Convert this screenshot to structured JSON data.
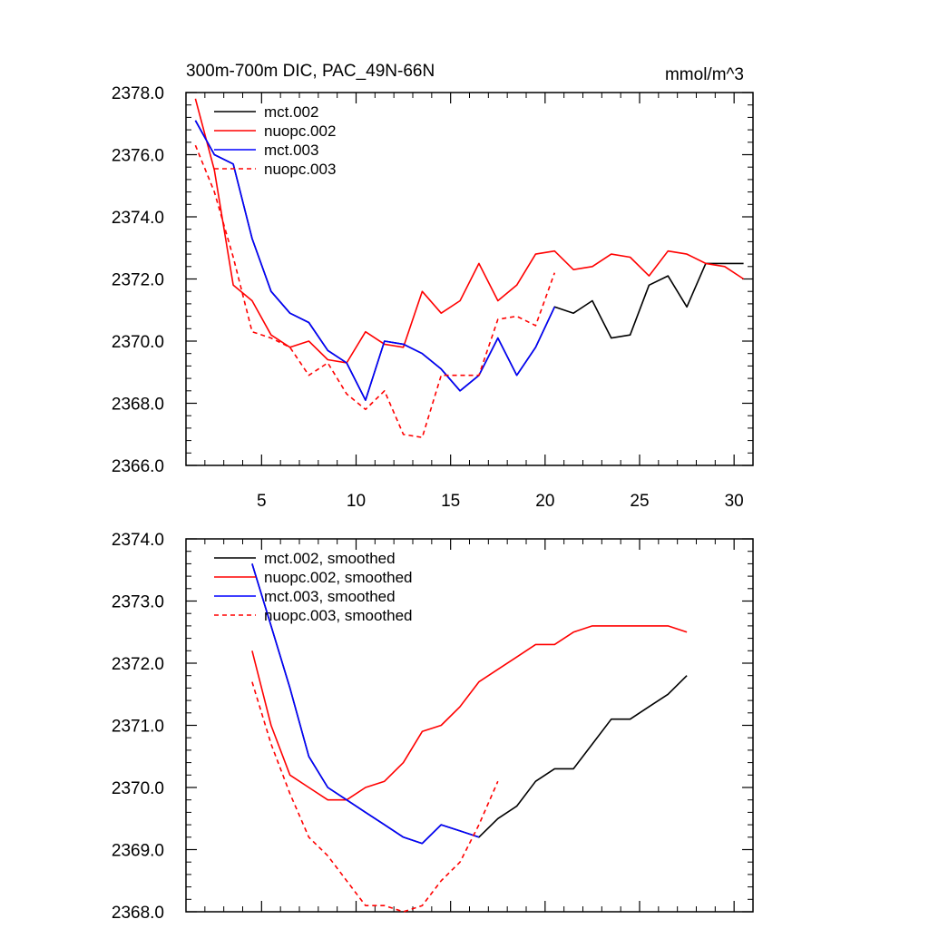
{
  "chart_data": [
    {
      "type": "line",
      "title": "300m-700m DIC, PAC_49N-66N",
      "units": "mmol/m^3",
      "ylim": [
        2366.0,
        2378.0
      ],
      "xlim": [
        1,
        31
      ],
      "yticks": [
        2366.0,
        2368.0,
        2370.0,
        2372.0,
        2374.0,
        2376.0,
        2378.0
      ],
      "ytick_labels": [
        "2366.0",
        "2368.0",
        "2370.0",
        "2372.0",
        "2374.0",
        "2376.0",
        "2378.0"
      ],
      "xticks": [
        5,
        10,
        15,
        20,
        25,
        30
      ],
      "xtick_labels": [
        "5",
        "10",
        "15",
        "20",
        "25",
        "30"
      ],
      "legend_position": "top-left",
      "series": [
        {
          "name": "mct.002",
          "color": "#000000",
          "dash": "solid",
          "x": [
            1.5,
            2.5,
            3.5,
            4.5,
            5.5,
            6.5,
            7.5,
            8.5,
            9.5,
            10.5,
            11.5,
            12.5,
            13.5,
            14.5,
            15.5,
            16.5,
            17.5,
            18.5,
            19.5,
            20.5,
            21.5,
            22.5,
            23.5,
            24.5,
            25.5,
            26.5,
            27.5,
            28.5,
            29.5,
            30.5
          ],
          "values": [
            2377.1,
            2376.0,
            2375.7,
            2373.3,
            2371.6,
            2370.9,
            2370.6,
            2369.7,
            2369.3,
            2368.1,
            2370.0,
            2369.9,
            2369.6,
            2369.1,
            2368.4,
            2368.9,
            2370.1,
            2368.9,
            2369.8,
            2371.1,
            2370.9,
            2371.3,
            2370.1,
            2370.2,
            2371.8,
            2372.1,
            2371.1,
            2372.5,
            2372.5,
            2372.5
          ]
        },
        {
          "name": "nuopc.002",
          "color": "#ff0000",
          "dash": "solid",
          "x": [
            1.5,
            2.5,
            3.5,
            4.5,
            5.5,
            6.5,
            7.5,
            8.5,
            9.5,
            10.5,
            11.5,
            12.5,
            13.5,
            14.5,
            15.5,
            16.5,
            17.5,
            18.5,
            19.5,
            20.5,
            21.5,
            22.5,
            23.5,
            24.5,
            25.5,
            26.5,
            27.5,
            28.5,
            29.5,
            30.5
          ],
          "values": [
            2377.8,
            2375.5,
            2371.8,
            2371.3,
            2370.2,
            2369.8,
            2370.0,
            2369.4,
            2369.3,
            2370.3,
            2369.9,
            2369.8,
            2371.6,
            2370.9,
            2371.3,
            2372.5,
            2371.3,
            2371.8,
            2372.8,
            2372.9,
            2372.3,
            2372.4,
            2372.8,
            2372.7,
            2372.1,
            2372.9,
            2372.8,
            2372.5,
            2372.4,
            2372.0
          ]
        },
        {
          "name": "mct.003",
          "color": "#0000ff",
          "dash": "solid",
          "x": [
            1.5,
            2.5,
            3.5,
            4.5,
            5.5,
            6.5,
            7.5,
            8.5,
            9.5,
            10.5,
            11.5,
            12.5,
            13.5,
            14.5,
            15.5,
            16.5,
            17.5,
            18.5,
            19.5,
            20.5
          ],
          "values": [
            2377.1,
            2376.0,
            2375.7,
            2373.3,
            2371.6,
            2370.9,
            2370.6,
            2369.7,
            2369.3,
            2368.1,
            2370.0,
            2369.9,
            2369.6,
            2369.1,
            2368.4,
            2368.9,
            2370.1,
            2368.9,
            2369.8,
            2371.1
          ]
        },
        {
          "name": "nuopc.003",
          "color": "#ff0000",
          "dash": "dashed",
          "x": [
            1.5,
            2.5,
            3.5,
            4.5,
            5.5,
            6.5,
            7.5,
            8.5,
            9.5,
            10.5,
            11.5,
            12.5,
            13.5,
            14.5,
            15.5,
            16.5,
            17.5,
            18.5,
            19.5,
            20.5
          ],
          "values": [
            2376.3,
            2374.8,
            2372.7,
            2370.3,
            2370.1,
            2369.8,
            2368.9,
            2369.3,
            2368.3,
            2367.8,
            2368.4,
            2367.0,
            2366.9,
            2368.9,
            2368.9,
            2368.9,
            2370.7,
            2370.8,
            2370.5,
            2372.2
          ]
        }
      ]
    },
    {
      "type": "line",
      "title": "",
      "ylim": [
        2368.0,
        2374.0
      ],
      "xlim": [
        1,
        31
      ],
      "yticks": [
        2368.0,
        2369.0,
        2370.0,
        2371.0,
        2372.0,
        2373.0,
        2374.0
      ],
      "ytick_labels": [
        "2368.0",
        "2369.0",
        "2370.0",
        "2371.0",
        "2372.0",
        "2373.0",
        "2374.0"
      ],
      "xticks": [
        5,
        10,
        15,
        20,
        25,
        30
      ],
      "legend_position": "top-left",
      "series": [
        {
          "name": "mct.002, smoothed",
          "color": "#000000",
          "dash": "solid",
          "x": [
            4.5,
            5.5,
            6.5,
            7.5,
            8.5,
            9.5,
            10.5,
            11.5,
            12.5,
            13.5,
            14.5,
            15.5,
            16.5,
            17.5,
            18.5,
            19.5,
            20.5,
            21.5,
            22.5,
            23.5,
            24.5,
            25.5,
            26.5,
            27.5
          ],
          "values": [
            2373.6,
            2372.6,
            2371.6,
            2370.5,
            2370.0,
            2369.8,
            2369.6,
            2369.4,
            2369.2,
            2369.1,
            2369.4,
            2369.3,
            2369.2,
            2369.5,
            2369.7,
            2370.1,
            2370.3,
            2370.3,
            2370.7,
            2371.1,
            2371.1,
            2371.3,
            2371.5,
            2371.8
          ]
        },
        {
          "name": "nuopc.002, smoothed",
          "color": "#ff0000",
          "dash": "solid",
          "x": [
            4.5,
            5.5,
            6.5,
            7.5,
            8.5,
            9.5,
            10.5,
            11.5,
            12.5,
            13.5,
            14.5,
            15.5,
            16.5,
            17.5,
            18.5,
            19.5,
            20.5,
            21.5,
            22.5,
            23.5,
            24.5,
            25.5,
            26.5,
            27.5
          ],
          "values": [
            2372.2,
            2371.0,
            2370.2,
            2370.0,
            2369.8,
            2369.8,
            2370.0,
            2370.1,
            2370.4,
            2370.9,
            2371.0,
            2371.3,
            2371.7,
            2371.9,
            2372.1,
            2372.3,
            2372.3,
            2372.5,
            2372.6,
            2372.6,
            2372.6,
            2372.6,
            2372.6,
            2372.5
          ]
        },
        {
          "name": "mct.003, smoothed",
          "color": "#0000ff",
          "dash": "solid",
          "x": [
            4.5,
            5.5,
            6.5,
            7.5,
            8.5,
            9.5,
            10.5,
            11.5,
            12.5,
            13.5,
            14.5,
            15.5,
            16.5
          ],
          "values": [
            2373.6,
            2372.6,
            2371.6,
            2370.5,
            2370.0,
            2369.8,
            2369.6,
            2369.4,
            2369.2,
            2369.1,
            2369.4,
            2369.3,
            2369.2
          ]
        },
        {
          "name": "nuopc.003, smoothed",
          "color": "#ff0000",
          "dash": "dashed",
          "x": [
            4.5,
            5.5,
            6.5,
            7.5,
            8.5,
            9.5,
            10.5,
            11.5,
            12.5,
            13.5,
            14.5,
            15.5,
            16.5,
            17.5
          ],
          "values": [
            2371.7,
            2370.7,
            2369.9,
            2369.2,
            2368.9,
            2368.5,
            2368.1,
            2368.1,
            2368.0,
            2368.1,
            2368.5,
            2368.8,
            2369.4,
            2370.1
          ]
        }
      ]
    }
  ]
}
